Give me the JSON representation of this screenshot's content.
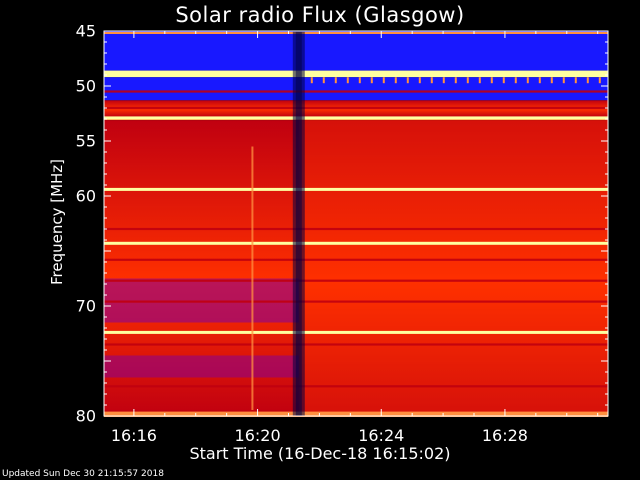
{
  "chart_data": {
    "type": "heatmap",
    "title": "Solar radio Flux (Glasgow)",
    "ylabel": "Frequency [MHz]",
    "xlabel": "Start Time (16-Dec-18 16:15:02)",
    "x_start": "16:15:02",
    "x_end": "16:31:20",
    "x_ticks": [
      "16:16",
      "16:20",
      "16:24",
      "16:28"
    ],
    "ylim": [
      80,
      45
    ],
    "y_ticks": [
      45,
      50,
      55,
      60,
      65,
      70,
      75,
      80
    ],
    "y_tick_labels": [
      "45",
      "50",
      "55",
      "60",
      "",
      "70",
      "",
      "80"
    ],
    "colormap": [
      "#000040",
      "#1818ff",
      "#8000a0",
      "#c00010",
      "#ff3000",
      "#ff9040",
      "#ffffa0"
    ],
    "bands": [
      {
        "from": 45.0,
        "to": 48.6,
        "level": "low"
      },
      {
        "from": 48.6,
        "to": 49.2,
        "level": "max"
      },
      {
        "from": 49.2,
        "to": 51.3,
        "level": "low"
      },
      {
        "from": 51.3,
        "to": 52.8,
        "level": "medium"
      },
      {
        "from": 52.8,
        "to": 53.1,
        "level": "high"
      },
      {
        "from": 53.1,
        "to": 80.0,
        "level": "medium"
      }
    ],
    "bright_lines_mhz": [
      48.9,
      52.9,
      59.4,
      64.3,
      72.4
    ],
    "events": [
      {
        "time": "16:21:20",
        "type": "dropout"
      },
      {
        "time": "16:19:50",
        "type": "narrow burst"
      }
    ]
  },
  "footer": "Updated Sun Dec 30 21:15:57 2018"
}
